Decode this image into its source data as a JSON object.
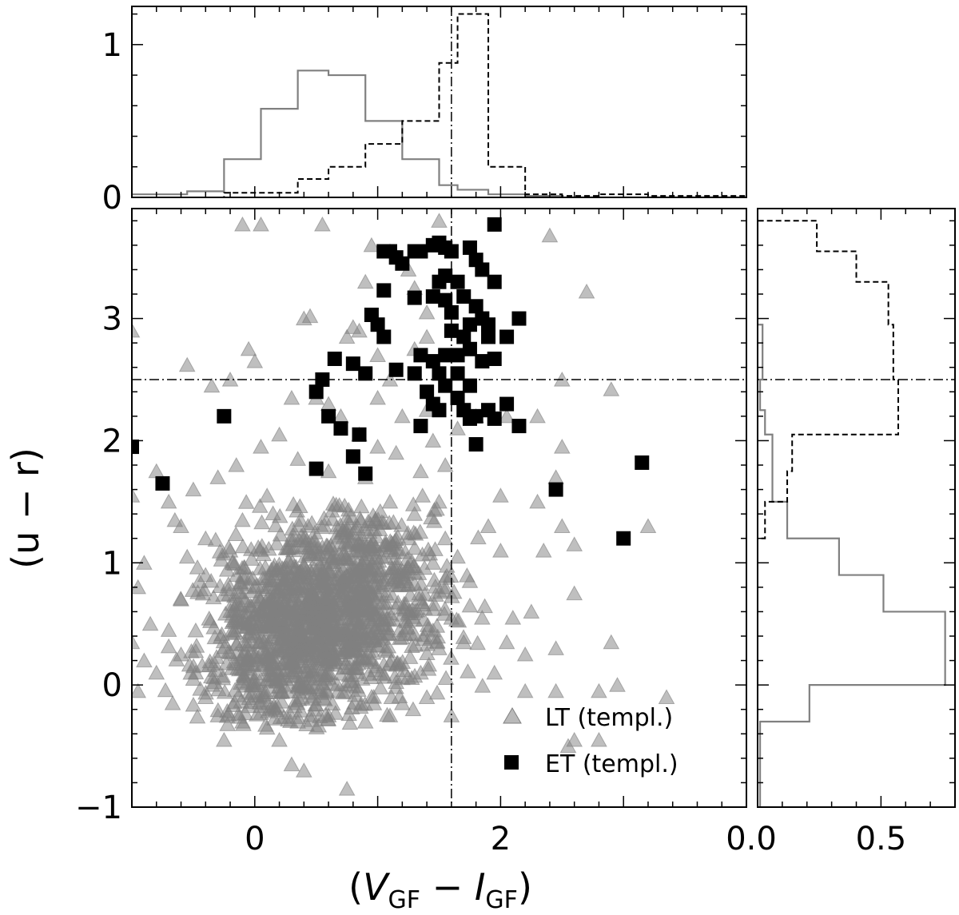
{
  "chart_data": {
    "type": "scatter",
    "xlabel": "(V_GF − I_GF)",
    "xlabel_parts": {
      "open": "(",
      "v": "V",
      "v_sub": "GF",
      "minus": " − ",
      "i": "I",
      "i_sub": "GF",
      "close": ")"
    },
    "ylabel": "(u − r)",
    "xlim": [
      -1.0,
      4.0
    ],
    "ylim": [
      -1.0,
      3.9
    ],
    "x_ticks": [
      "0",
      "2"
    ],
    "y_ticks": [
      "−1",
      "0",
      "1",
      "2",
      "3"
    ],
    "vertical_line_x": 1.6,
    "horizontal_line_y": 2.5,
    "legend": {
      "location": "lower-right",
      "entries": [
        "LT (templ.)",
        "ET (templ.)"
      ]
    },
    "series": [
      {
        "name": "LT (templ.)",
        "marker": "triangle",
        "color": "#808080",
        "cloud_centers": [
          [
            0.45,
            0.55
          ],
          [
            0.9,
            0.75
          ],
          [
            0.2,
            0.3
          ]
        ],
        "points": [
          [
            -0.1,
            3.77
          ],
          [
            0.05,
            3.77
          ],
          [
            0.55,
            3.77
          ],
          [
            1.5,
            3.8
          ],
          [
            1.5,
            3.6
          ],
          [
            1.1,
            3.55
          ],
          [
            2.4,
            3.68
          ],
          [
            2.7,
            3.22
          ],
          [
            1.25,
            3.4
          ],
          [
            1.3,
            3.25
          ],
          [
            0.4,
            3.0
          ],
          [
            0.45,
            3.02
          ],
          [
            0.8,
            2.93
          ],
          [
            0.75,
            2.85
          ],
          [
            0.85,
            2.9
          ],
          [
            -0.05,
            2.75
          ],
          [
            0.0,
            2.65
          ],
          [
            -0.55,
            2.62
          ],
          [
            -0.2,
            2.5
          ],
          [
            -0.35,
            2.45
          ],
          [
            0.3,
            2.35
          ],
          [
            0.5,
            2.35
          ],
          [
            1.0,
            2.7
          ],
          [
            1.1,
            2.5
          ],
          [
            1.3,
            2.75
          ],
          [
            1.4,
            2.85
          ],
          [
            1.4,
            3.05
          ],
          [
            2.3,
            2.2
          ],
          [
            2.5,
            1.95
          ],
          [
            2.45,
            1.7
          ],
          [
            2.9,
            2.42
          ],
          [
            -1.0,
            2.9
          ],
          [
            -1.0,
            1.55
          ],
          [
            -0.8,
            1.75
          ],
          [
            -0.65,
            1.35
          ],
          [
            -0.9,
            1.0
          ],
          [
            -0.95,
            0.8
          ],
          [
            -0.85,
            0.5
          ],
          [
            -0.9,
            0.2
          ],
          [
            -0.95,
            -0.05
          ],
          [
            -0.8,
            0.1
          ],
          [
            -1.0,
            0.35
          ],
          [
            2.3,
            1.5
          ],
          [
            2.5,
            1.3
          ],
          [
            2.6,
            1.15
          ],
          [
            2.35,
            1.1
          ],
          [
            2.6,
            0.75
          ],
          [
            2.25,
            0.6
          ],
          [
            2.45,
            0.3
          ],
          [
            2.2,
            0.25
          ],
          [
            2.9,
            0.35
          ],
          [
            3.2,
            1.3
          ],
          [
            2.1,
            0.55
          ],
          [
            2.05,
            0.35
          ],
          [
            1.95,
            0.1
          ],
          [
            2.2,
            -0.05
          ],
          [
            2.45,
            -0.05
          ],
          [
            2.8,
            -0.05
          ],
          [
            2.95,
            0.0
          ],
          [
            3.35,
            -0.1
          ],
          [
            2.55,
            -0.5
          ],
          [
            2.6,
            -0.45
          ],
          [
            2.8,
            -0.45
          ],
          [
            0.3,
            -0.65
          ],
          [
            0.4,
            -0.7
          ],
          [
            0.75,
            -0.85
          ],
          [
            0.2,
            -0.45
          ],
          [
            -0.25,
            -0.45
          ],
          [
            1.1,
            -0.25
          ],
          [
            1.6,
            -0.25
          ],
          [
            1.65,
            1.05
          ],
          [
            1.75,
            0.85
          ],
          [
            2.0,
            1.1
          ],
          [
            1.9,
            1.3
          ],
          [
            2.0,
            1.55
          ],
          [
            1.55,
            1.8
          ],
          [
            1.65,
            2.1
          ],
          [
            1.8,
            2.2
          ],
          [
            2.05,
            2.2
          ],
          [
            1.4,
            2.25
          ],
          [
            2.5,
            2.5
          ],
          [
            1.5,
            1.5
          ],
          [
            1.55,
            1.2
          ],
          [
            1.3,
            1.4
          ],
          [
            1.35,
            1.75
          ],
          [
            1.15,
            1.9
          ],
          [
            1.45,
            2.0
          ],
          [
            1.0,
            1.95
          ],
          [
            0.85,
            2.05
          ],
          [
            0.6,
            2.3
          ],
          [
            0.2,
            2.05
          ],
          [
            0.05,
            1.95
          ],
          [
            -0.15,
            1.8
          ],
          [
            -0.3,
            1.7
          ],
          [
            -0.5,
            1.6
          ],
          [
            -0.7,
            1.5
          ],
          [
            -0.6,
            1.3
          ],
          [
            -0.4,
            1.2
          ],
          [
            -0.55,
            1.05
          ],
          [
            -0.45,
            0.85
          ],
          [
            -0.6,
            0.7
          ],
          [
            -0.7,
            0.45
          ],
          [
            -0.6,
            0.25
          ],
          [
            -0.5,
            0.05
          ],
          [
            -0.4,
            -0.1
          ],
          [
            -0.3,
            -0.25
          ],
          [
            -0.1,
            -0.3
          ],
          [
            0.1,
            -0.35
          ],
          [
            0.35,
            -0.3
          ],
          [
            0.6,
            -0.25
          ],
          [
            0.9,
            -0.3
          ],
          [
            1.2,
            -0.15
          ],
          [
            1.4,
            -0.1
          ],
          [
            1.35,
            0.1
          ],
          [
            1.5,
            0.3
          ],
          [
            1.6,
            0.55
          ],
          [
            1.7,
            0.35
          ],
          [
            1.85,
            0.55
          ],
          [
            1.75,
            0.65
          ],
          [
            1.55,
            0.8
          ],
          [
            1.45,
            1.0
          ],
          [
            1.25,
            1.2
          ],
          [
            1.1,
            1.5
          ],
          [
            0.9,
            1.7
          ],
          [
            0.6,
            1.75
          ],
          [
            0.35,
            1.85
          ],
          [
            0.1,
            1.55
          ],
          [
            -0.1,
            1.35
          ],
          [
            -0.2,
            1.1
          ],
          [
            1.0,
            2.35
          ],
          [
            0.7,
            2.2
          ],
          [
            1.2,
            2.2
          ],
          [
            0.95,
            3.6
          ],
          [
            0.9,
            3.3
          ]
        ]
      },
      {
        "name": "ET (templ.)",
        "marker": "square",
        "color": "#000000",
        "points": [
          [
            1.95,
            3.77
          ],
          [
            1.05,
            3.55
          ],
          [
            1.1,
            3.55
          ],
          [
            1.15,
            3.5
          ],
          [
            1.2,
            3.45
          ],
          [
            1.3,
            3.55
          ],
          [
            1.35,
            3.55
          ],
          [
            1.45,
            3.6
          ],
          [
            1.5,
            3.62
          ],
          [
            1.55,
            3.58
          ],
          [
            1.6,
            3.55
          ],
          [
            1.75,
            3.58
          ],
          [
            1.8,
            3.48
          ],
          [
            1.85,
            3.4
          ],
          [
            1.5,
            3.3
          ],
          [
            1.55,
            3.35
          ],
          [
            1.65,
            3.3
          ],
          [
            1.95,
            3.3
          ],
          [
            1.3,
            3.17
          ],
          [
            1.05,
            3.23
          ],
          [
            1.45,
            3.18
          ],
          [
            1.55,
            3.15
          ],
          [
            1.7,
            3.18
          ],
          [
            1.6,
            3.05
          ],
          [
            1.75,
            2.95
          ],
          [
            1.8,
            3.1
          ],
          [
            1.85,
            3.0
          ],
          [
            1.9,
            2.95
          ],
          [
            0.95,
            3.03
          ],
          [
            1.0,
            2.95
          ],
          [
            1.05,
            2.85
          ],
          [
            1.6,
            2.9
          ],
          [
            1.7,
            2.85
          ],
          [
            1.9,
            2.85
          ],
          [
            2.05,
            2.85
          ],
          [
            2.15,
            3.0
          ],
          [
            1.35,
            2.7
          ],
          [
            1.45,
            2.65
          ],
          [
            1.55,
            2.7
          ],
          [
            1.65,
            2.7
          ],
          [
            1.75,
            2.75
          ],
          [
            1.85,
            2.65
          ],
          [
            1.95,
            2.67
          ],
          [
            0.65,
            2.67
          ],
          [
            0.8,
            2.63
          ],
          [
            0.9,
            2.55
          ],
          [
            1.15,
            2.58
          ],
          [
            1.3,
            2.55
          ],
          [
            1.5,
            2.55
          ],
          [
            1.65,
            2.55
          ],
          [
            0.55,
            2.5
          ],
          [
            0.5,
            2.4
          ],
          [
            1.4,
            2.4
          ],
          [
            1.55,
            2.45
          ],
          [
            1.65,
            2.35
          ],
          [
            1.75,
            2.45
          ],
          [
            1.45,
            2.3
          ],
          [
            1.5,
            2.25
          ],
          [
            1.7,
            2.25
          ],
          [
            1.8,
            2.2
          ],
          [
            1.9,
            2.25
          ],
          [
            2.05,
            2.3
          ],
          [
            1.35,
            2.12
          ],
          [
            1.75,
            2.18
          ],
          [
            1.95,
            2.18
          ],
          [
            -1.0,
            1.95
          ],
          [
            -0.75,
            1.65
          ],
          [
            -0.25,
            2.2
          ],
          [
            0.6,
            2.2
          ],
          [
            0.7,
            2.1
          ],
          [
            0.85,
            2.05
          ],
          [
            0.8,
            1.87
          ],
          [
            0.5,
            1.77
          ],
          [
            0.9,
            1.73
          ],
          [
            1.8,
            1.97
          ],
          [
            2.15,
            2.12
          ],
          [
            2.45,
            1.6
          ],
          [
            3.15,
            1.82
          ],
          [
            3.0,
            1.2
          ]
        ]
      }
    ],
    "top_histogram": {
      "x_tick_labels": [
        "0",
        "1"
      ],
      "ylim": [
        0,
        1.25
      ],
      "bin_edges": [
        -1.0,
        -0.55,
        -0.25,
        0.05,
        0.35,
        0.6,
        0.9,
        1.2,
        1.5,
        1.65,
        1.9,
        2.2,
        2.5,
        2.8,
        3.2,
        4.0
      ],
      "LT (templ.)": [
        0.02,
        0.04,
        0.25,
        0.58,
        0.83,
        0.8,
        0.5,
        0.25,
        0.08,
        0.05,
        0.02,
        0.01,
        0.0,
        0.0,
        0.0
      ],
      "ET (templ.)": [
        0.0,
        0.0,
        0.03,
        0.03,
        0.12,
        0.2,
        0.35,
        0.5,
        0.88,
        1.2,
        0.2,
        0.02,
        0.01,
        0.02,
        0.01
      ]
    },
    "right_histogram": {
      "x_tick_labels": [
        "0.0",
        "0.5"
      ],
      "xlim": [
        0,
        0.8
      ],
      "bin_edges": [
        -1.0,
        -0.3,
        0.0,
        0.6,
        0.9,
        1.2,
        1.5,
        1.75,
        2.05,
        2.25,
        2.5,
        2.95,
        3.3,
        3.55,
        3.8
      ],
      "LT (templ.)": [
        0.01,
        0.21,
        0.76,
        0.51,
        0.33,
        0.12,
        0.06,
        0.06,
        0.03,
        0.01,
        0.02,
        0.0,
        0.0,
        0.0
      ],
      "ET (templ.)": [
        0.0,
        0.0,
        0.0,
        0.0,
        0.0,
        0.03,
        0.12,
        0.14,
        0.57,
        0.57,
        0.55,
        0.53,
        0.4,
        0.24
      ]
    }
  }
}
